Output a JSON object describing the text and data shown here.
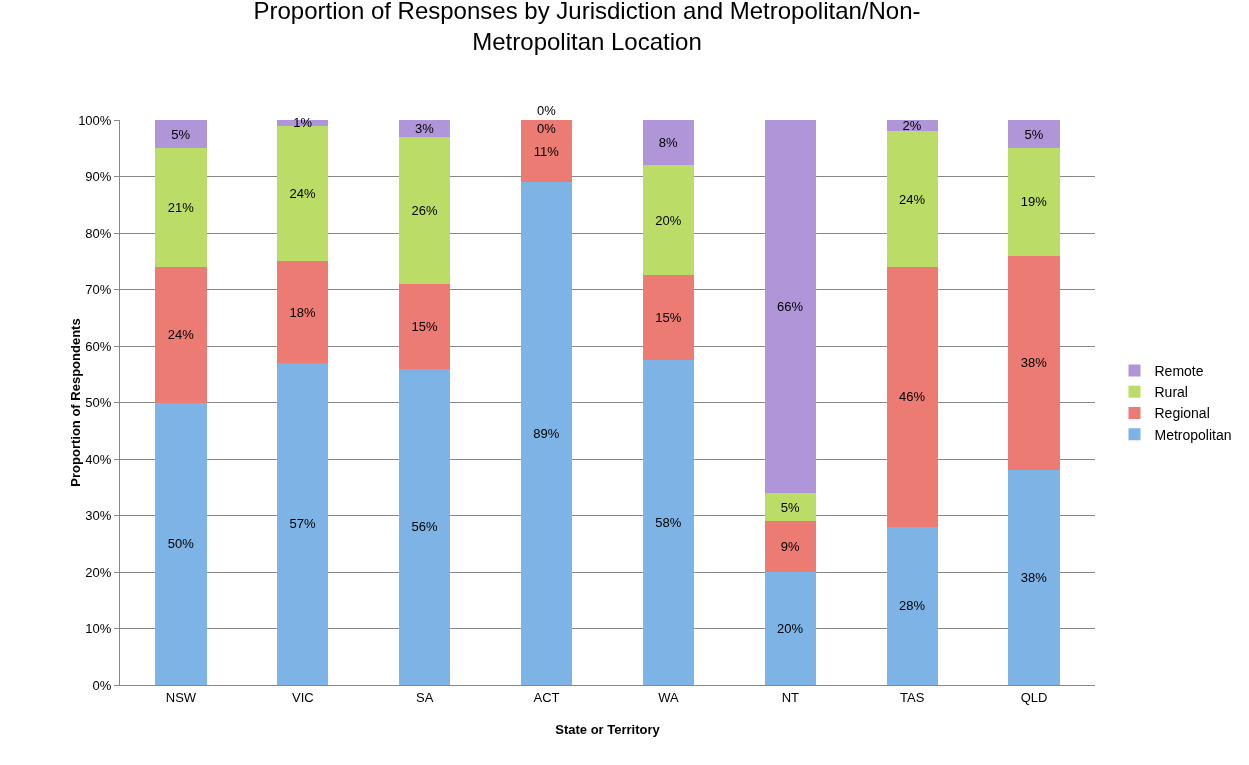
{
  "chart_data": {
    "type": "bar",
    "stacked": true,
    "title": "Proportion of Responses by Jurisdiction and Metropolitan/Non-\nMetropolitan Location",
    "xlabel": "State or Territory",
    "ylabel": "Proportion of Respondents",
    "categories": [
      "NSW",
      "VIC",
      "SA",
      "ACT",
      "WA",
      "NT",
      "TAS",
      "QLD"
    ],
    "series": [
      {
        "name": "Metropolitan",
        "color": "#7eb3e6",
        "values": [
          50,
          57,
          56,
          89,
          57.5,
          20,
          28,
          38
        ],
        "value_labels": [
          "50%",
          "57%",
          "56%",
          "89%",
          "58%",
          "20%",
          "28%",
          "38%"
        ]
      },
      {
        "name": "Regional",
        "color": "#ec7b74",
        "values": [
          24,
          18,
          15,
          11,
          15,
          9,
          46,
          38
        ],
        "value_labels": [
          "24%",
          "18%",
          "15%",
          "11%",
          "15%",
          "9%",
          "46%",
          "38%"
        ]
      },
      {
        "name": "Rural",
        "color": "#bcdc68",
        "values": [
          21,
          24,
          26,
          0,
          19.5,
          5,
          24,
          19
        ],
        "value_labels": [
          "21%",
          "24%",
          "26%",
          "0%",
          "20%",
          "5%",
          "24%",
          "19%"
        ]
      },
      {
        "name": "Remote",
        "color": "#b095d8",
        "values": [
          5,
          1,
          3,
          0,
          8,
          66,
          2,
          5
        ],
        "value_labels": [
          "5%",
          "1%",
          "3%",
          "0%",
          "8%",
          "66%",
          "2%",
          "5%"
        ]
      }
    ],
    "ylim": [
      0,
      100
    ],
    "yticks": [
      {
        "value": 0,
        "label": "0%"
      },
      {
        "value": 10,
        "label": "10%"
      },
      {
        "value": 20,
        "label": "20%"
      },
      {
        "value": 30,
        "label": "30%"
      },
      {
        "value": 40,
        "label": "40%"
      },
      {
        "value": 50,
        "label": "50%"
      },
      {
        "value": 60,
        "label": "60%"
      },
      {
        "value": 70,
        "label": "70%"
      },
      {
        "value": 80,
        "label": "80%"
      },
      {
        "value": 90,
        "label": "90%"
      },
      {
        "value": 100,
        "label": "100%"
      }
    ],
    "grid": "y",
    "legend": "right"
  }
}
